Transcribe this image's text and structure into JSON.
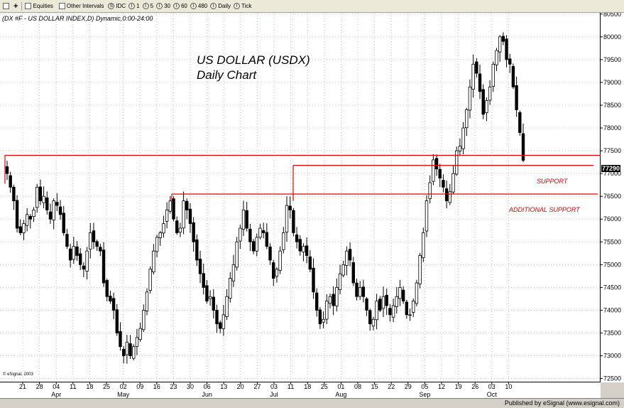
{
  "toolbar": {
    "equities_label": "Equities",
    "other_intervals_label": "Other Intervals",
    "intervals": [
      "IDC",
      "1",
      "5",
      "30",
      "60",
      "480",
      "Daily",
      "Tick"
    ]
  },
  "symbol_title": "(DX #F - US DOLLAR INDEX,D) Dynamic,0:00-24:00",
  "annotation": {
    "line1": "US DOLLAR (USDX)",
    "line2": "Daily Chart"
  },
  "labels": {
    "support": "SUPPORT",
    "additional_support": "ADDITIONAL SUPPORT"
  },
  "last_price": "77290",
  "copyright": "© eSignal, 2003",
  "status": "Published by eSignal (www.esignal.com)",
  "colors": {
    "support_line": "#e00000",
    "candle": "#000000",
    "background": "#ffffff"
  },
  "chart_data": {
    "type": "candlestick",
    "title": "US DOLLAR (USDX)",
    "subtitle": "Daily Chart",
    "y_ticks": [
      72500,
      73000,
      73500,
      74000,
      74500,
      75000,
      75500,
      76000,
      76500,
      77000,
      77500,
      78000,
      78500,
      79000,
      79500,
      80000,
      80500
    ],
    "ylim": [
      72400,
      80650
    ],
    "x_day_labels": [
      "21",
      "28",
      "04",
      "11",
      "18",
      "25",
      "02",
      "09",
      "16",
      "23",
      "30",
      "06",
      "13",
      "20",
      "27",
      "03",
      "11",
      "18",
      "25",
      "01",
      "08",
      "15",
      "22",
      "29",
      "05",
      "12",
      "19",
      "26",
      "03",
      "10"
    ],
    "x_month_labels": [
      {
        "label": "Apr",
        "at": 2
      },
      {
        "label": "May",
        "at": 6
      },
      {
        "label": "Jun",
        "at": 11
      },
      {
        "label": "Jul",
        "at": 15
      },
      {
        "label": "Aug",
        "at": 19
      },
      {
        "label": "Sep",
        "at": 24
      },
      {
        "label": "Oct",
        "at": 28
      }
    ],
    "support_levels": [
      {
        "name": "SUPPORT",
        "level": 77400
      },
      {
        "name": "",
        "level": 77180
      },
      {
        "name": "ADDITIONAL SUPPORT",
        "level": 76550
      }
    ],
    "closes": [
      77000,
      76700,
      76400,
      75800,
      75700,
      75900,
      76100,
      76000,
      76200,
      76700,
      76400,
      76500,
      76200,
      76000,
      76400,
      76300,
      76100,
      75700,
      75400,
      75100,
      75400,
      75200,
      75000,
      74900,
      75300,
      75700,
      75500,
      75400,
      75300,
      74600,
      74300,
      74200,
      74000,
      73500,
      73200,
      73000,
      73300,
      73000,
      73200,
      73400,
      73600,
      74000,
      74400,
      74900,
      75300,
      75600,
      75700,
      75900,
      76200,
      76400,
      76000,
      75700,
      75800,
      76400,
      76200,
      75900,
      75500,
      75100,
      74800,
      74500,
      74200,
      74300,
      74000,
      73700,
      73600,
      73900,
      74300,
      74700,
      75000,
      75500,
      75800,
      76200,
      75800,
      75500,
      75300,
      75600,
      75800,
      75700,
      75400,
      75100,
      74700,
      74900,
      75300,
      75700,
      76300,
      76200,
      75700,
      75500,
      75300,
      75400,
      75200,
      74900,
      74400,
      74000,
      73700,
      73800,
      74200,
      74300,
      74100,
      74500,
      74800,
      75000,
      75300,
      75100,
      74600,
      74300,
      74500,
      74300,
      74000,
      73700,
      73800,
      74200,
      74000,
      74300,
      74100,
      73900,
      74100,
      74300,
      74500,
      74200,
      73900,
      73900,
      74200,
      74600,
      75200,
      75700,
      76400,
      76800,
      77300,
      77100,
      76900,
      76700,
      76400,
      76600,
      77000,
      77500,
      77600,
      78000,
      78400,
      78900,
      79400,
      79200,
      78800,
      78300,
      78600,
      78900,
      79400,
      79700,
      80000,
      79900,
      79500,
      79400,
      78900,
      78400,
      77900,
      77290
    ]
  }
}
